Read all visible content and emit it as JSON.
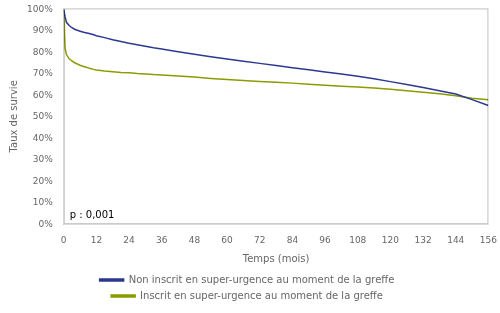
{
  "chart_data": {
    "type": "line",
    "xlabel": "Temps (mois)",
    "ylabel": "Taux de survie",
    "xlim": [
      0,
      156
    ],
    "ylim": [
      0,
      1.005
    ],
    "xticks": [
      0,
      12,
      24,
      36,
      48,
      60,
      72,
      84,
      96,
      108,
      120,
      132,
      144,
      156
    ],
    "yticks": [
      {
        "value": 0.0,
        "label": "0%"
      },
      {
        "value": 0.1,
        "label": "10%"
      },
      {
        "value": 0.2,
        "label": "20%"
      },
      {
        "value": 0.3,
        "label": "30%"
      },
      {
        "value": 0.4,
        "label": "40%"
      },
      {
        "value": 0.5,
        "label": "50%"
      },
      {
        "value": 0.6,
        "label": "60%"
      },
      {
        "value": 0.7,
        "label": "70%"
      },
      {
        "value": 0.8,
        "label": "80%"
      },
      {
        "value": 0.9,
        "label": "90%"
      },
      {
        "value": 1.0,
        "label": "100%"
      }
    ],
    "annotations": [
      "p : 0,001"
    ],
    "grid": false,
    "legend": "bottom",
    "x": [
      0,
      0.5,
      1,
      2,
      3,
      4,
      5,
      6,
      7,
      8,
      9,
      10,
      11,
      12,
      15,
      18,
      21,
      24,
      27,
      30,
      33,
      36,
      42,
      48,
      54,
      60,
      66,
      72,
      78,
      84,
      90,
      96,
      102,
      108,
      114,
      120,
      126,
      132,
      138,
      144,
      150,
      156
    ],
    "series": [
      {
        "name": "Non inscrit en super-urgence au moment de la greffe",
        "color": "#2B3990",
        "values": [
          1.0,
          0.965,
          0.94,
          0.925,
          0.915,
          0.908,
          0.903,
          0.899,
          0.895,
          0.892,
          0.889,
          0.886,
          0.882,
          0.878,
          0.869,
          0.859,
          0.851,
          0.843,
          0.836,
          0.829,
          0.822,
          0.816,
          0.803,
          0.791,
          0.78,
          0.769,
          0.759,
          0.749,
          0.739,
          0.729,
          0.719,
          0.709,
          0.699,
          0.689,
          0.677,
          0.664,
          0.651,
          0.637,
          0.622,
          0.606,
          0.58,
          0.553
        ]
      },
      {
        "name": "Inscrit en super-urgence au moment de la greffe",
        "color": "#8B9B00",
        "values": [
          1.0,
          0.82,
          0.79,
          0.77,
          0.76,
          0.752,
          0.746,
          0.74,
          0.736,
          0.732,
          0.728,
          0.724,
          0.721,
          0.718,
          0.713,
          0.71,
          0.707,
          0.705,
          0.702,
          0.7,
          0.697,
          0.695,
          0.69,
          0.685,
          0.679,
          0.674,
          0.669,
          0.665,
          0.661,
          0.657,
          0.652,
          0.647,
          0.643,
          0.639,
          0.634,
          0.629,
          0.622,
          0.615,
          0.607,
          0.598,
          0.587,
          0.58
        ]
      }
    ]
  }
}
